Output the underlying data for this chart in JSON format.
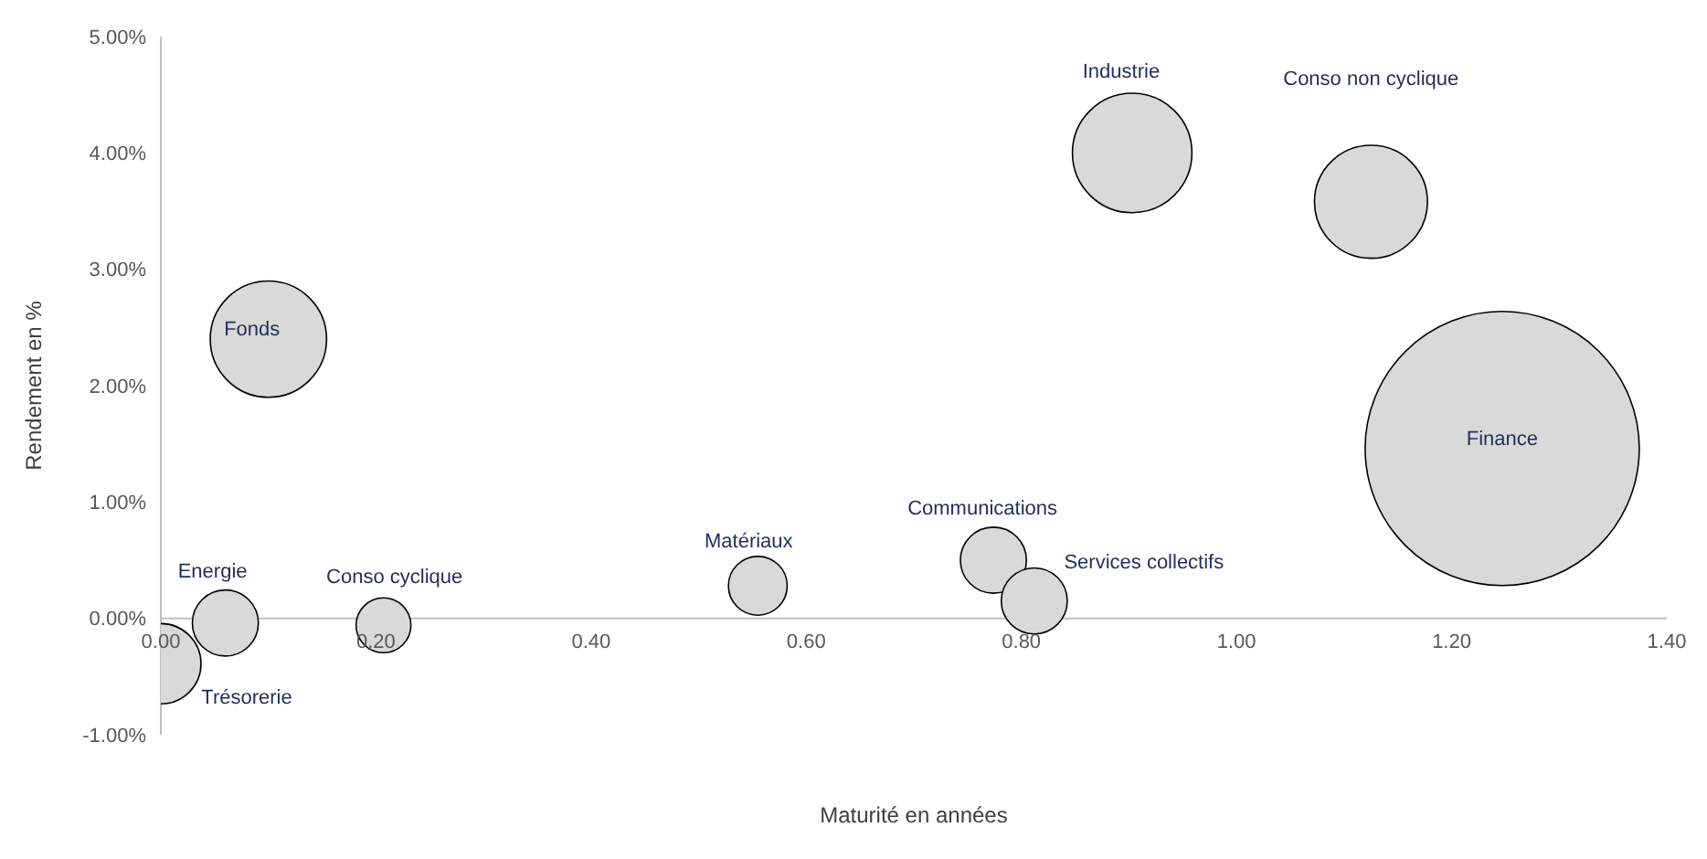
{
  "chart_data": {
    "type": "bubble",
    "xlabel": "Maturité en années",
    "ylabel": "Rendement en %",
    "x": [
      0.0,
      0.06,
      0.207,
      0.1,
      0.555,
      0.774,
      0.812,
      0.903,
      1.125,
      1.247
    ],
    "values": [
      -0.39,
      -0.04,
      -0.06,
      2.4,
      0.28,
      0.5,
      0.15,
      4.0,
      3.58,
      1.46
    ],
    "sizes": [
      0.086,
      0.058,
      0.04,
      0.18,
      0.046,
      0.058,
      0.058,
      0.19,
      0.17,
      1
    ],
    "color": "#d9d9d9",
    "xlim": [
      0,
      1.4
    ],
    "xticks": [
      {
        "value": 0,
        "label": "0.00"
      },
      {
        "value": 0.2,
        "label": "0.20"
      },
      {
        "value": 0.4,
        "label": "0.40"
      },
      {
        "value": 0.6,
        "label": "0.60"
      },
      {
        "value": 0.8,
        "label": "0.80"
      },
      {
        "value": 1.0,
        "label": "1.00"
      },
      {
        "value": 1.2,
        "label": "1.20"
      },
      {
        "value": 1.4,
        "label": "1.40"
      }
    ],
    "ylim": [
      -1,
      5
    ],
    "yticks": [
      {
        "value": -1,
        "label": "-1.00%"
      },
      {
        "value": 0,
        "label": "0.00%"
      },
      {
        "value": 1,
        "label": "1.00%"
      },
      {
        "value": 2,
        "label": "2.00%"
      },
      {
        "value": 3,
        "label": "3.00%"
      },
      {
        "value": 4,
        "label": "4.00%"
      },
      {
        "value": 5,
        "label": "5.00%"
      }
    ],
    "grid": false,
    "legend": false,
    "annotations": [
      {
        "text": "Trésorerie",
        "x": 0.0,
        "y": -0.39
      },
      {
        "text": "Energie",
        "x": 0.06,
        "y": -0.04
      },
      {
        "text": "Conso cyclique",
        "x": 0.207,
        "y": -0.06
      },
      {
        "text": "Fonds",
        "x": 0.1,
        "y": 2.4
      },
      {
        "text": "Matériaux",
        "x": 0.555,
        "y": 0.28
      },
      {
        "text": "Communications",
        "x": 0.774,
        "y": 0.5
      },
      {
        "text": "Services collectifs",
        "x": 0.812,
        "y": 0.15
      },
      "Industrie",
      "Conso non cyclique",
      {
        "text": "Finance",
        "x": 1.247,
        "y": 1.46
      }
    ]
  }
}
